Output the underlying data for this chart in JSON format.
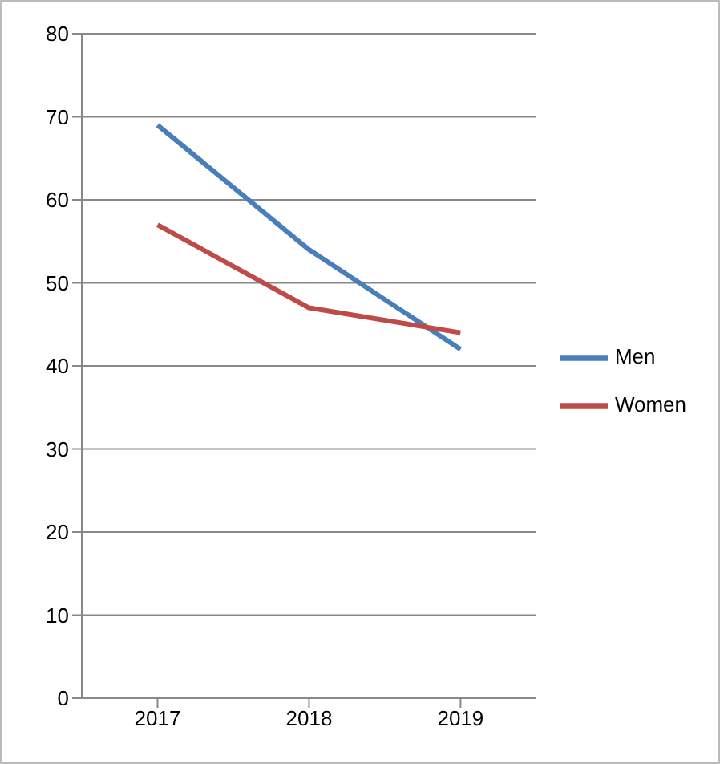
{
  "chart_data": {
    "type": "line",
    "categories": [
      "2017",
      "2018",
      "2019"
    ],
    "series": [
      {
        "name": "Men",
        "color": "#4a7ebb",
        "values": [
          69,
          54,
          42
        ]
      },
      {
        "name": "Women",
        "color": "#be4b48",
        "values": [
          57,
          47,
          44
        ]
      }
    ],
    "ylim": [
      0,
      80
    ],
    "yticks": [
      0,
      10,
      20,
      30,
      40,
      50,
      60,
      70,
      80
    ],
    "grid": "y",
    "legend": "right",
    "marker": "none"
  }
}
